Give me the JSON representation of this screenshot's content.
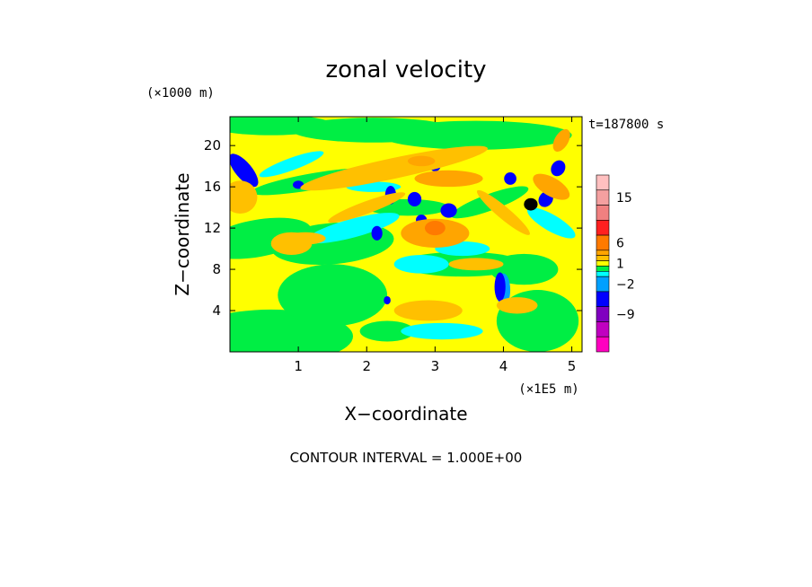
{
  "chart_data": {
    "type": "heatmap",
    "title": "zonal velocity",
    "xlabel": "X−coordinate",
    "ylabel": "Z−coordinate",
    "x_unit": "(×1E5 m)",
    "y_unit": "(×1000 m)",
    "time_label": "t=187800 s",
    "footer": "CONTOUR INTERVAL = 1.000E+00",
    "xlim": [
      0,
      5.15
    ],
    "ylim": [
      0,
      22.8
    ],
    "x_ticks": [
      "1",
      "2",
      "3",
      "4",
      "5"
    ],
    "y_ticks": [
      "4",
      "8",
      "12",
      "16",
      "20"
    ],
    "contour_interval": 1.0,
    "colorbar": {
      "labels": [
        "15",
        "6",
        "1",
        "−2",
        "−9"
      ],
      "levels": [
        {
          "lo": 18,
          "color": "#ffc0c0"
        },
        {
          "lo": 15,
          "color": "#f4a0a0"
        },
        {
          "lo": 12,
          "color": "#f08080"
        },
        {
          "lo": 9,
          "color": "#ff2020"
        },
        {
          "lo": 6,
          "color": "#ff7a00"
        },
        {
          "lo": 3,
          "color": "#ffa500"
        },
        {
          "lo": 2,
          "color": "#ffc000"
        },
        {
          "lo": 1,
          "color": "#ffff00"
        },
        {
          "lo": 0,
          "color": "#00ee44"
        },
        {
          "lo": -1,
          "color": "#00ffff"
        },
        {
          "lo": -2,
          "color": "#00a0ff"
        },
        {
          "lo": -6,
          "color": "#0000ff"
        },
        {
          "lo": -9,
          "color": "#8000c0"
        },
        {
          "lo": -12,
          "color": "#c000c0"
        },
        {
          "lo": -15,
          "color": "#ff00c0"
        }
      ]
    }
  }
}
